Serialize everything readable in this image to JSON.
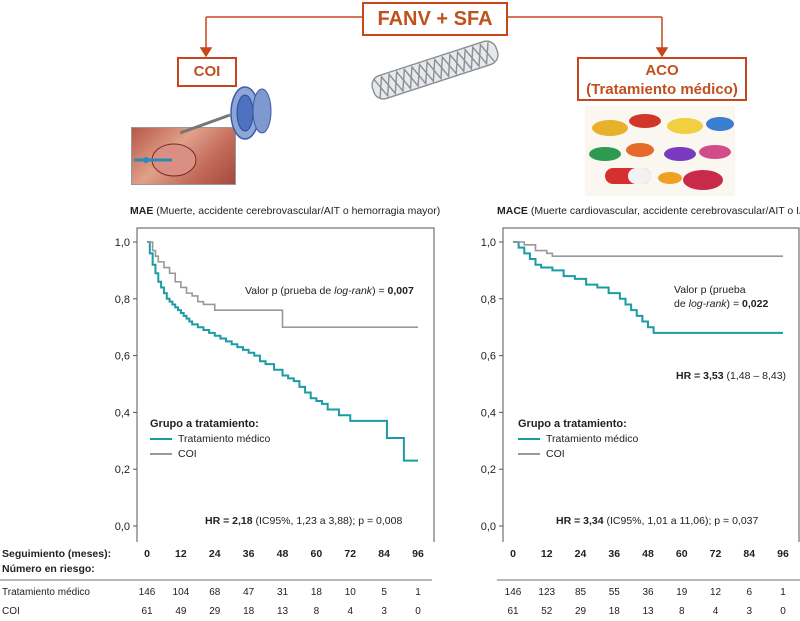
{
  "header": {
    "main_label": "FANV + SFA",
    "left_label": "COI",
    "right_label_line1": "ACO",
    "right_label_line2": "(Tratamiento médico)",
    "accent_color": "#c8461d"
  },
  "left_panel": {
    "title_bold": "MAE",
    "title_rest": " (Muerte, accidente cerebrovascular/AIT o hemorragia mayor)",
    "pvalue_prefix": "Valor p (prueba de ",
    "pvalue_italic": "log-rank",
    "pvalue_suffix": ") = ",
    "pvalue_value": "0,007",
    "legend_title": "Grupo a tratamiento:",
    "legend_items": [
      "Tratamiento médico",
      "COI"
    ],
    "hr_bold": "HR = 2,18",
    "hr_rest": " (IC95%, 1,23 a 3,88); p = 0,008"
  },
  "right_panel": {
    "title_bold": "MACE",
    "title_rest": " (Muerte cardiovascular, accidente cerebrovascular/AIT o IAM)",
    "pvalue_line1": "Valor p (prueba",
    "pvalue_prefix": "de ",
    "pvalue_italic": "log-rank",
    "pvalue_suffix": ") = ",
    "pvalue_value": "0,022",
    "hr_top_bold": "HR = 3,53",
    "hr_top_rest": " (1,48 – 8,43)",
    "legend_title": "Grupo a tratamiento:",
    "legend_items": [
      "Tratamiento médico",
      "COI"
    ],
    "hr_bold": "HR = 3,34",
    "hr_rest": " (IC95%, 1,01 a 11,06); p = 0,037"
  },
  "risk_table": {
    "seguimiento_label": "Seguimiento (meses):",
    "numero_label": "Número en riesgo:",
    "row_labels": [
      "Tratamiento médico",
      "COI"
    ],
    "left": {
      "tratamiento": [
        "146",
        "104",
        "68",
        "47",
        "31",
        "18",
        "10",
        "5",
        "1"
      ],
      "coi": [
        "61",
        "49",
        "29",
        "18",
        "13",
        "8",
        "4",
        "3",
        "0"
      ]
    },
    "right": {
      "tratamiento": [
        "146",
        "123",
        "85",
        "55",
        "36",
        "19",
        "12",
        "6",
        "1"
      ],
      "coi": [
        "61",
        "52",
        "29",
        "18",
        "13",
        "8",
        "4",
        "3",
        "0"
      ]
    }
  },
  "chart_data": [
    {
      "type": "line",
      "title": "MAE (Muerte, accidente cerebrovascular/AIT o hemorragia mayor)",
      "xlabel": "Seguimiento (meses)",
      "ylabel": "",
      "xlim": [
        0,
        96
      ],
      "ylim": [
        0.0,
        1.0
      ],
      "x_ticks": [
        "0",
        "12",
        "24",
        "36",
        "48",
        "60",
        "72",
        "84",
        "96"
      ],
      "y_ticks": [
        "0,0",
        "0,2",
        "0,4",
        "0,6",
        "0,8",
        "1,0"
      ],
      "colors": {
        "Tratamiento médico": "#1a9ba6",
        "COI": "#999999"
      },
      "series": [
        {
          "name": "Tratamiento médico",
          "x": [
            0,
            1,
            2,
            3,
            4,
            5,
            6,
            7,
            8,
            9,
            10,
            11,
            12,
            13,
            14,
            15,
            16,
            18,
            20,
            22,
            24,
            26,
            28,
            30,
            32,
            34,
            36,
            38,
            40,
            42,
            45,
            48,
            50,
            52,
            54,
            56,
            58,
            60,
            62,
            64,
            68,
            72,
            76,
            84,
            85,
            88,
            91,
            96
          ],
          "y": [
            1.0,
            0.96,
            0.92,
            0.89,
            0.86,
            0.84,
            0.82,
            0.8,
            0.79,
            0.78,
            0.77,
            0.76,
            0.75,
            0.74,
            0.73,
            0.72,
            0.71,
            0.7,
            0.69,
            0.68,
            0.67,
            0.66,
            0.65,
            0.64,
            0.63,
            0.62,
            0.61,
            0.6,
            0.58,
            0.57,
            0.55,
            0.53,
            0.52,
            0.51,
            0.49,
            0.47,
            0.45,
            0.44,
            0.43,
            0.41,
            0.39,
            0.37,
            0.37,
            0.37,
            0.31,
            0.31,
            0.23,
            0.23
          ]
        },
        {
          "name": "COI",
          "x": [
            0,
            2,
            3,
            4,
            6,
            8,
            10,
            12,
            14,
            16,
            18,
            20,
            24,
            28,
            48,
            60,
            72,
            84,
            96
          ],
          "y": [
            1.0,
            0.97,
            0.95,
            0.93,
            0.91,
            0.89,
            0.86,
            0.84,
            0.82,
            0.81,
            0.79,
            0.78,
            0.76,
            0.76,
            0.7,
            0.7,
            0.7,
            0.7,
            0.7
          ]
        }
      ]
    },
    {
      "type": "line",
      "title": "MACE (Muerte cardiovascular, accidente cerebrovascular/AIT o IAM)",
      "xlabel": "Seguimiento (meses)",
      "ylabel": "",
      "xlim": [
        0,
        96
      ],
      "ylim": [
        0.0,
        1.0
      ],
      "x_ticks": [
        "0",
        "12",
        "24",
        "36",
        "48",
        "60",
        "72",
        "84",
        "96"
      ],
      "y_ticks": [
        "0,0",
        "0,2",
        "0,4",
        "0,6",
        "0,8",
        "1,0"
      ],
      "colors": {
        "Tratamiento médico": "#1a9ba6",
        "COI": "#999999"
      },
      "series": [
        {
          "name": "Tratamiento médico",
          "x": [
            0,
            2,
            4,
            6,
            8,
            10,
            14,
            18,
            22,
            26,
            30,
            34,
            38,
            40,
            42,
            44,
            46,
            48,
            50,
            96
          ],
          "y": [
            1.0,
            0.98,
            0.96,
            0.94,
            0.92,
            0.91,
            0.9,
            0.88,
            0.87,
            0.85,
            0.84,
            0.82,
            0.8,
            0.78,
            0.76,
            0.74,
            0.72,
            0.7,
            0.68,
            0.68
          ]
        },
        {
          "name": "COI",
          "x": [
            0,
            4,
            8,
            12,
            14,
            96
          ],
          "y": [
            1.0,
            0.99,
            0.97,
            0.96,
            0.95,
            0.95
          ]
        }
      ]
    }
  ]
}
